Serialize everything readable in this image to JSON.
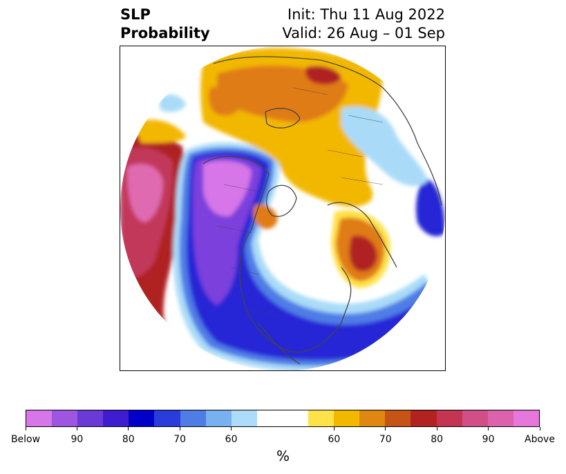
{
  "title": {
    "left_line1": "SLP",
    "left_line2": "Probability",
    "right_line1": "Init: Thu 11 Aug 2022",
    "right_line2": "Valid: 26 Aug – 01 Sep"
  },
  "map": {
    "projection": "north-polar-stereographic",
    "regions": [
      "North America",
      "Europe",
      "Asia",
      "Arctic"
    ],
    "palette": {
      "below_max": "#d676e8",
      "below_high": "#7b3fdc",
      "below_mid": "#2525d6",
      "below_low": "#4f7de6",
      "below_weak": "#a9dbf8",
      "neutral": "#ffffff",
      "above_weak": "#ffe14a",
      "above_low": "#f2b800",
      "above_mid": "#e07b12",
      "above_high": "#b02424",
      "above_max": "#c2385a",
      "above_extreme": "#e06ab0",
      "coastline": "#444444"
    }
  },
  "colorbar": {
    "colors": [
      "#d676e8",
      "#9e55e0",
      "#6b3ad6",
      "#3e1ccf",
      "#0000c8",
      "#2a3ddb",
      "#4f7de6",
      "#78b1ef",
      "#acdcfa",
      "#ffffff",
      "#ffe14a",
      "#f2b800",
      "#df8710",
      "#c65417",
      "#b22222",
      "#c43552",
      "#cf4f86",
      "#dc62ad",
      "#e678dc"
    ],
    "tick_labels": [
      "Below",
      "90",
      "80",
      "70",
      "60",
      "60",
      "70",
      "80",
      "90",
      "Above"
    ],
    "unit_label": "%"
  }
}
